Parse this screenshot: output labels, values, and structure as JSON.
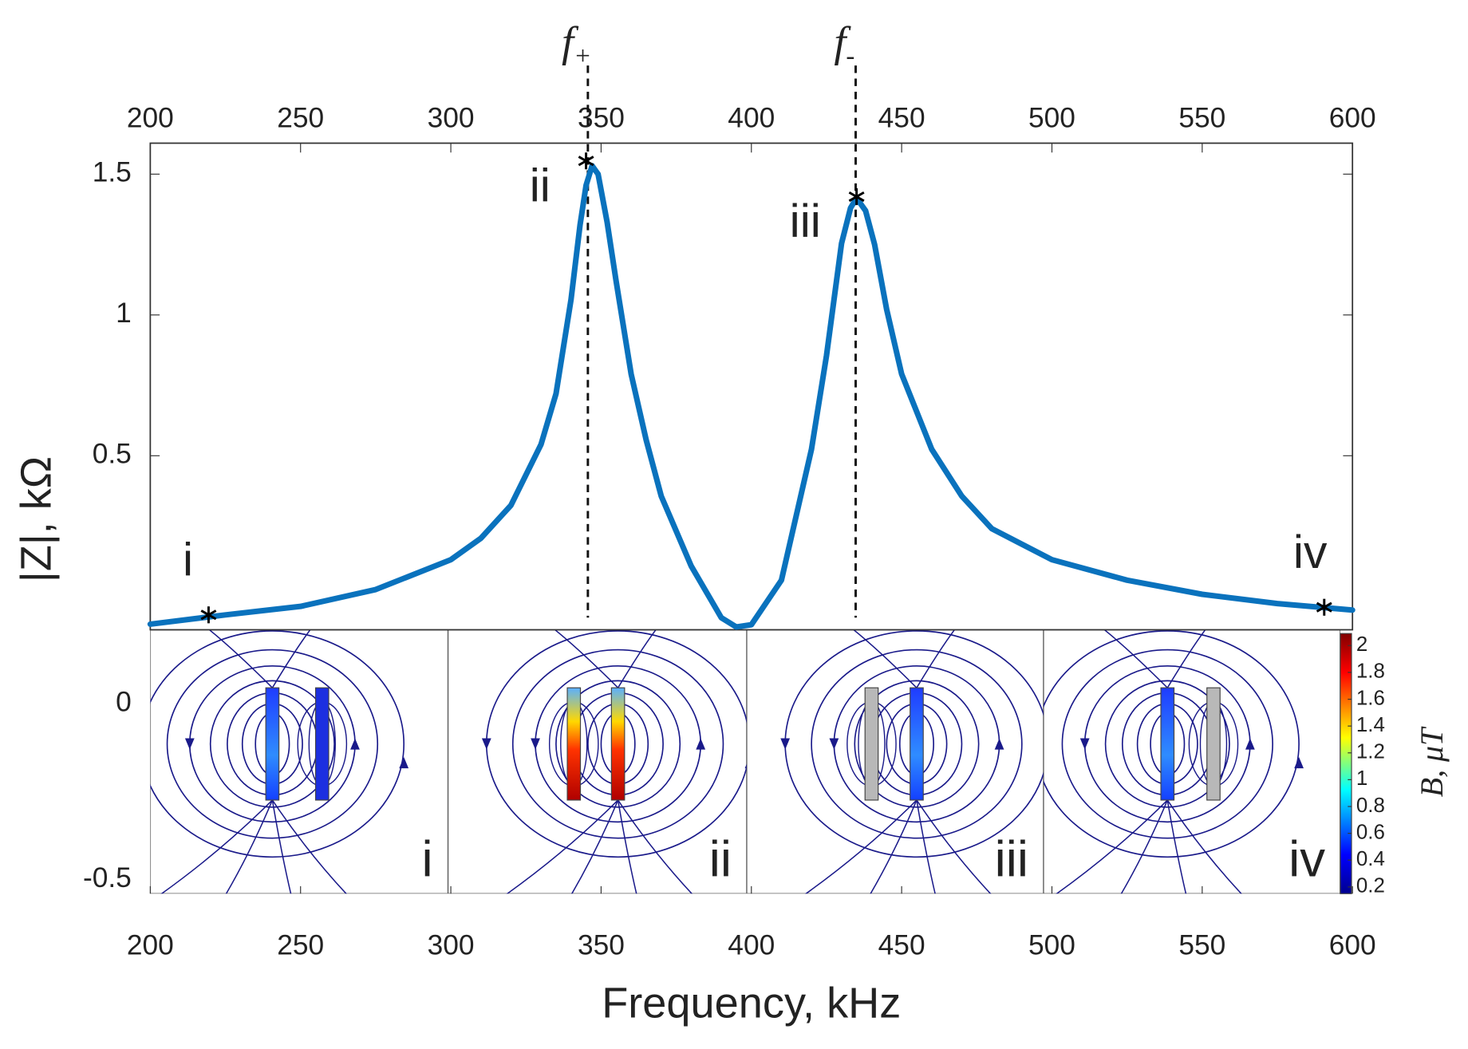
{
  "chart_data": {
    "type": "line",
    "xlabel": "Frequency, kHz",
    "ylabel": "|Z|, kΩ",
    "xlim": [
      200,
      600
    ],
    "xticks": [
      200,
      250,
      300,
      350,
      400,
      450,
      500,
      550,
      600
    ],
    "x2lim": [
      200,
      600
    ],
    "x2ticks": [
      200,
      250,
      300,
      350,
      400,
      450,
      500,
      550,
      600
    ],
    "ylim": [
      -0.118,
      1.61
    ],
    "yticks": [
      0.5,
      1,
      1.5
    ],
    "inset_ylim": [
      -0.54,
      0.21
    ],
    "inset_yticks": [
      -0.5,
      0
    ],
    "series": [
      {
        "name": "|Z|",
        "color": "#0a72bd",
        "x": [
          200,
          225,
          250,
          275,
          300,
          310,
          320,
          330,
          335,
          340,
          343,
          345,
          347,
          349,
          352,
          355,
          360,
          365,
          370,
          380,
          390,
          395,
          400,
          410,
          420,
          425,
          430,
          433,
          435,
          438,
          441,
          445,
          450,
          460,
          470,
          480,
          500,
          525,
          550,
          575,
          600
        ],
        "values": [
          -0.098,
          -0.065,
          -0.035,
          0.025,
          0.131,
          0.207,
          0.324,
          0.54,
          0.72,
          1.055,
          1.32,
          1.46,
          1.53,
          1.5,
          1.33,
          1.12,
          0.79,
          0.556,
          0.357,
          0.108,
          -0.075,
          -0.108,
          -0.1,
          0.058,
          0.523,
          0.856,
          1.254,
          1.38,
          1.415,
          1.37,
          1.25,
          1.02,
          0.79,
          0.523,
          0.357,
          0.241,
          0.131,
          0.058,
          0.008,
          -0.025,
          -0.048
        ]
      }
    ],
    "markers": [
      {
        "label": "i",
        "color": "#2a9fd6",
        "x": 219.4,
        "y": -0.065
      },
      {
        "label": "ii",
        "color": "#7ec820",
        "x": 345,
        "y": 1.547
      },
      {
        "label": "iii",
        "color": "#f7b515",
        "x": 435,
        "y": 1.42
      },
      {
        "label": "iv",
        "color": "#d7191c",
        "x": 590.6,
        "y": -0.038
      }
    ],
    "resonances": [
      {
        "symbol": "f",
        "sub": "+",
        "x": 345.6
      },
      {
        "symbol": "f",
        "sub": "-",
        "x": 434.7
      }
    ],
    "insets": [
      {
        "label": "i",
        "color": "#2a9fd6"
      },
      {
        "label": "ii",
        "color": "#7ec820"
      },
      {
        "label": "iii",
        "color": "#f7b515"
      },
      {
        "label": "iv",
        "color": "#d7191c"
      }
    ],
    "colorbar": {
      "label": "B, μT",
      "lim": [
        0.15,
        2.09
      ],
      "ticks": [
        0.2,
        0.4,
        0.6,
        0.8,
        1,
        1.2,
        1.4,
        1.6,
        1.8,
        2
      ]
    }
  }
}
